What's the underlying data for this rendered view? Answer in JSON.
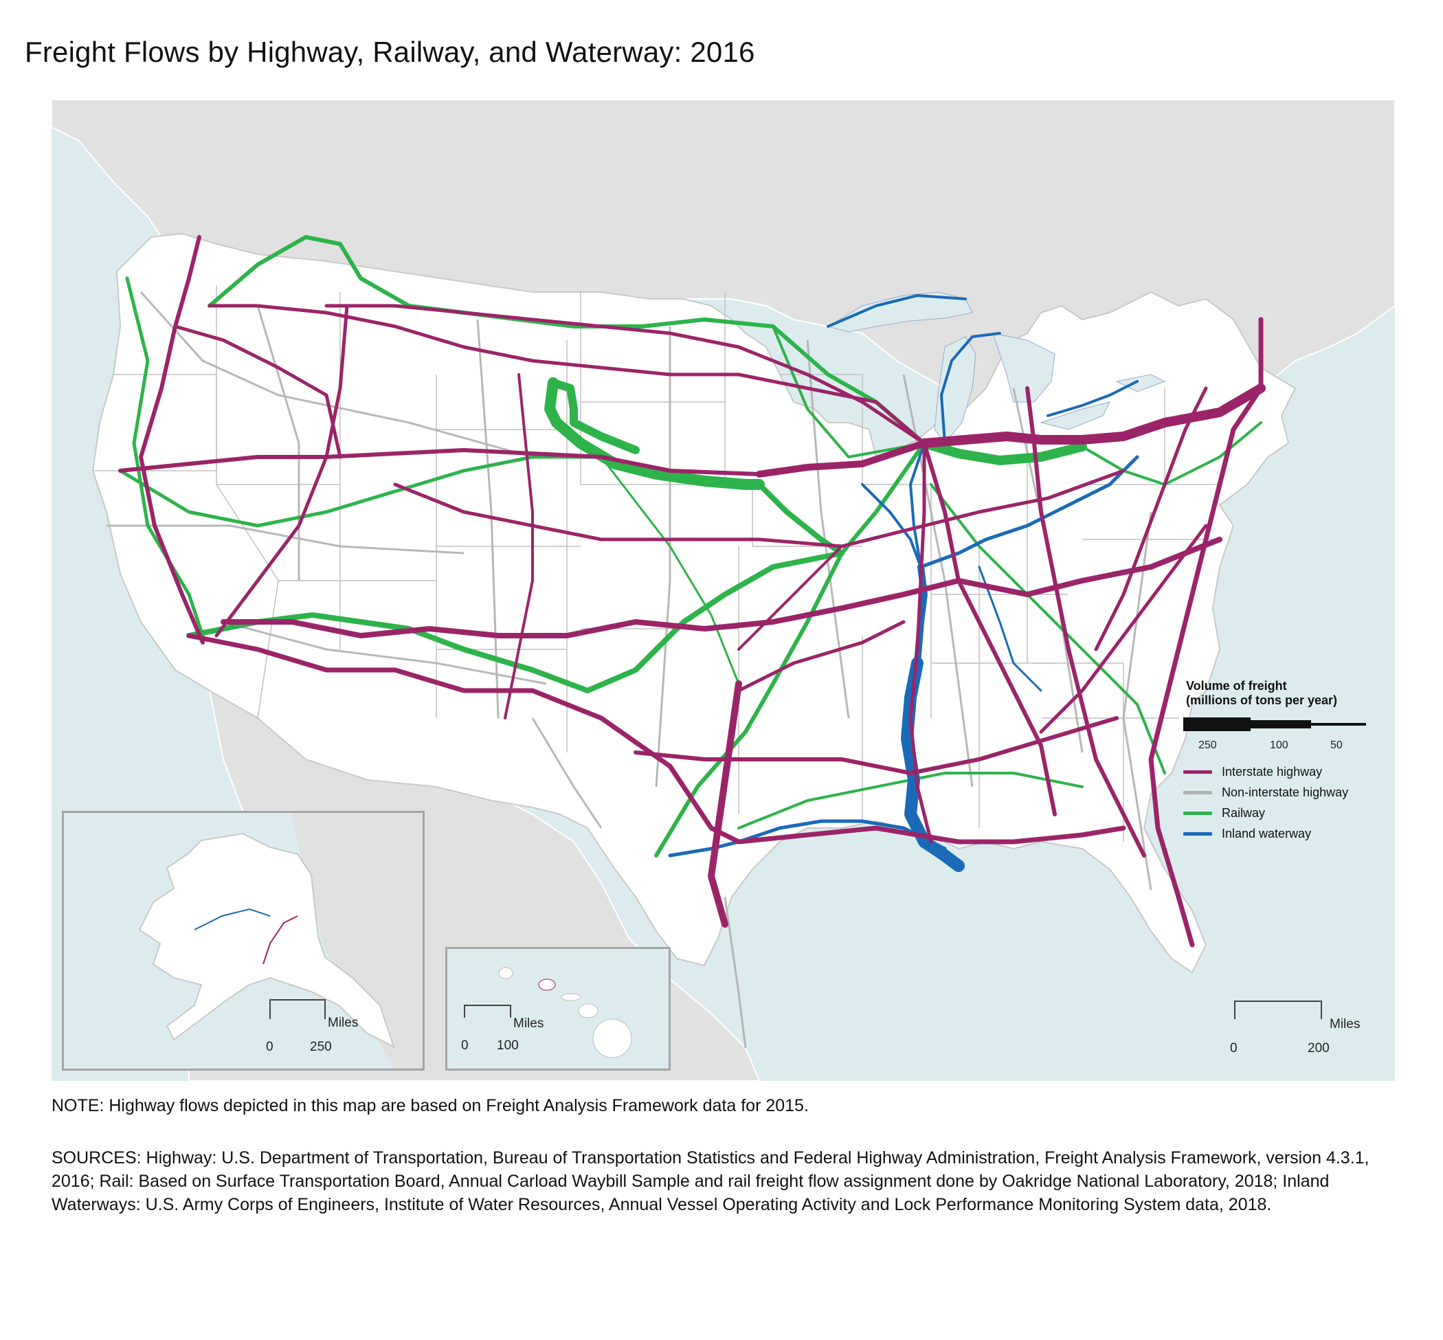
{
  "title": "Freight Flows by Highway, Railway, and Waterway: 2016",
  "colors": {
    "water": "#dcecee",
    "land_foreign": "#e1e1e1",
    "land_us": "#ffffff",
    "state_border": "#b4b4b4",
    "interstate": "#9b2469",
    "non_interstate": "#b0b0b0",
    "railway": "#2db34a",
    "waterway": "#1a6ab8"
  },
  "legend": {
    "title_line1": "Volume of freight",
    "title_line2": "(millions of tons per year)",
    "volume_ticks": [
      "250",
      "100",
      "50"
    ],
    "items": [
      {
        "label": "Interstate highway",
        "color": "#9b2469"
      },
      {
        "label": "Non-interstate highway",
        "color": "#b0b0b0"
      },
      {
        "label": "Railway",
        "color": "#2db34a"
      },
      {
        "label": "Inland waterway",
        "color": "#1a6ab8"
      }
    ]
  },
  "scales": {
    "main": {
      "unit": "Miles",
      "start": "0",
      "end": "200"
    },
    "alaska": {
      "unit": "Miles",
      "start": "0",
      "end": "250"
    },
    "hawaii": {
      "unit": "Miles",
      "start": "0",
      "end": "100"
    }
  },
  "note": "NOTE: Highway flows depicted in this map are based on Freight Analysis Framework data for 2015.",
  "sources": "SOURCES: Highway: U.S. Department of Transportation, Bureau of Transportation Statistics and Federal Highway Administration, Freight Analysis Framework, version 4.3.1, 2016; Rail: Based on Surface Transportation Board, Annual Carload Waybill Sample and rail freight flow assignment done by Oakridge National Laboratory, 2018; Inland Waterways: U.S. Army Corps of Engineers, Institute of Water Resources, Annual Vessel Operating Activity and Lock Performance Monitoring System data, 2018."
}
